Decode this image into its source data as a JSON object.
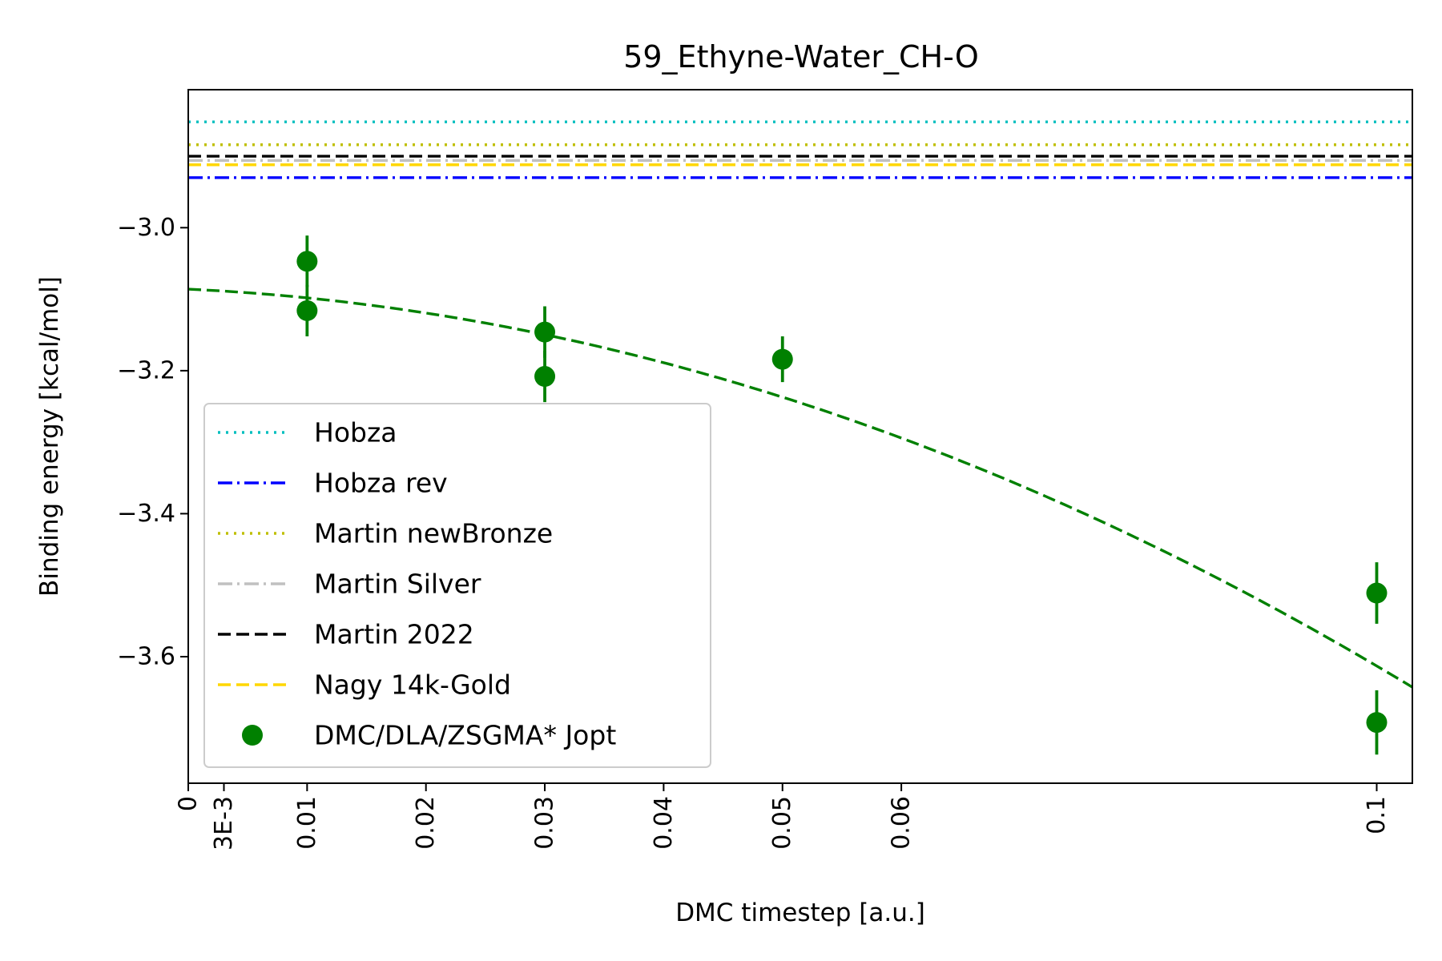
{
  "chart_data": {
    "type": "scatter",
    "title": "59_Ethyne-Water_CH-O",
    "xlabel": "DMC timestep [a.u.]",
    "ylabel": "Binding energy [kcal/mol]",
    "xlim": [
      0,
      0.103
    ],
    "ylim": [
      -3.777,
      -2.807
    ],
    "x_ticks": [
      {
        "value": 0,
        "label": "0"
      },
      {
        "value": 0.003,
        "label": "3E-3"
      },
      {
        "value": 0.01,
        "label": "0.01"
      },
      {
        "value": 0.02,
        "label": "0.02"
      },
      {
        "value": 0.03,
        "label": "0.03"
      },
      {
        "value": 0.04,
        "label": "0.04"
      },
      {
        "value": 0.05,
        "label": "0.05"
      },
      {
        "value": 0.06,
        "label": "0.06"
      },
      {
        "value": 0.1,
        "label": "0.1"
      }
    ],
    "x_tick_rotation": -90,
    "y_ticks": [
      {
        "value": -3.0,
        "label": "−3.0"
      },
      {
        "value": -3.2,
        "label": "−3.2"
      },
      {
        "value": -3.4,
        "label": "−3.4"
      },
      {
        "value": -3.6,
        "label": "−3.6"
      }
    ],
    "grid": false,
    "legend_position": "lower-left",
    "reference_lines": [
      {
        "name": "Hobza",
        "y": -2.852,
        "color": "#00BFBF",
        "style": "dotted"
      },
      {
        "name": "Hobza rev",
        "y": -2.93,
        "color": "#0000FF",
        "style": "dashdot"
      },
      {
        "name": "Martin newBronze",
        "y": -2.884,
        "color": "#BFBF00",
        "style": "dotted"
      },
      {
        "name": "Martin Silver",
        "y": -2.906,
        "color": "#C0C0C0",
        "style": "dashdot"
      },
      {
        "name": "Martin 2022",
        "y": -2.9,
        "color": "#000000",
        "style": "dashed"
      },
      {
        "name": "Nagy 14k-Gold",
        "y": -2.912,
        "color": "#FFD700",
        "style": "dashed"
      }
    ],
    "series": [
      {
        "name": "DMC/DLA/ZSGMA* Jopt",
        "color": "#008000",
        "marker": "circle",
        "points": [
          {
            "x": 0.01,
            "y": -3.047,
            "err": 0.036
          },
          {
            "x": 0.01,
            "y": -3.116,
            "err": 0.036
          },
          {
            "x": 0.03,
            "y": -3.146,
            "err": 0.036
          },
          {
            "x": 0.03,
            "y": -3.208,
            "err": 0.036
          },
          {
            "x": 0.05,
            "y": -3.184,
            "err": 0.032
          },
          {
            "x": 0.1,
            "y": -3.511,
            "err": 0.043
          },
          {
            "x": 0.1,
            "y": -3.692,
            "err": 0.045
          }
        ]
      }
    ],
    "fit": {
      "color": "#008000",
      "style": "dashed",
      "form": "quadratic",
      "coefficients": {
        "a": -3.086,
        "b": -0.77,
        "c": -45.0
      }
    },
    "legend": [
      "Hobza",
      "Hobza rev",
      "Martin newBronze",
      "Martin Silver",
      "Martin 2022",
      "Nagy 14k-Gold",
      "DMC/DLA/ZSGMA* Jopt"
    ]
  }
}
